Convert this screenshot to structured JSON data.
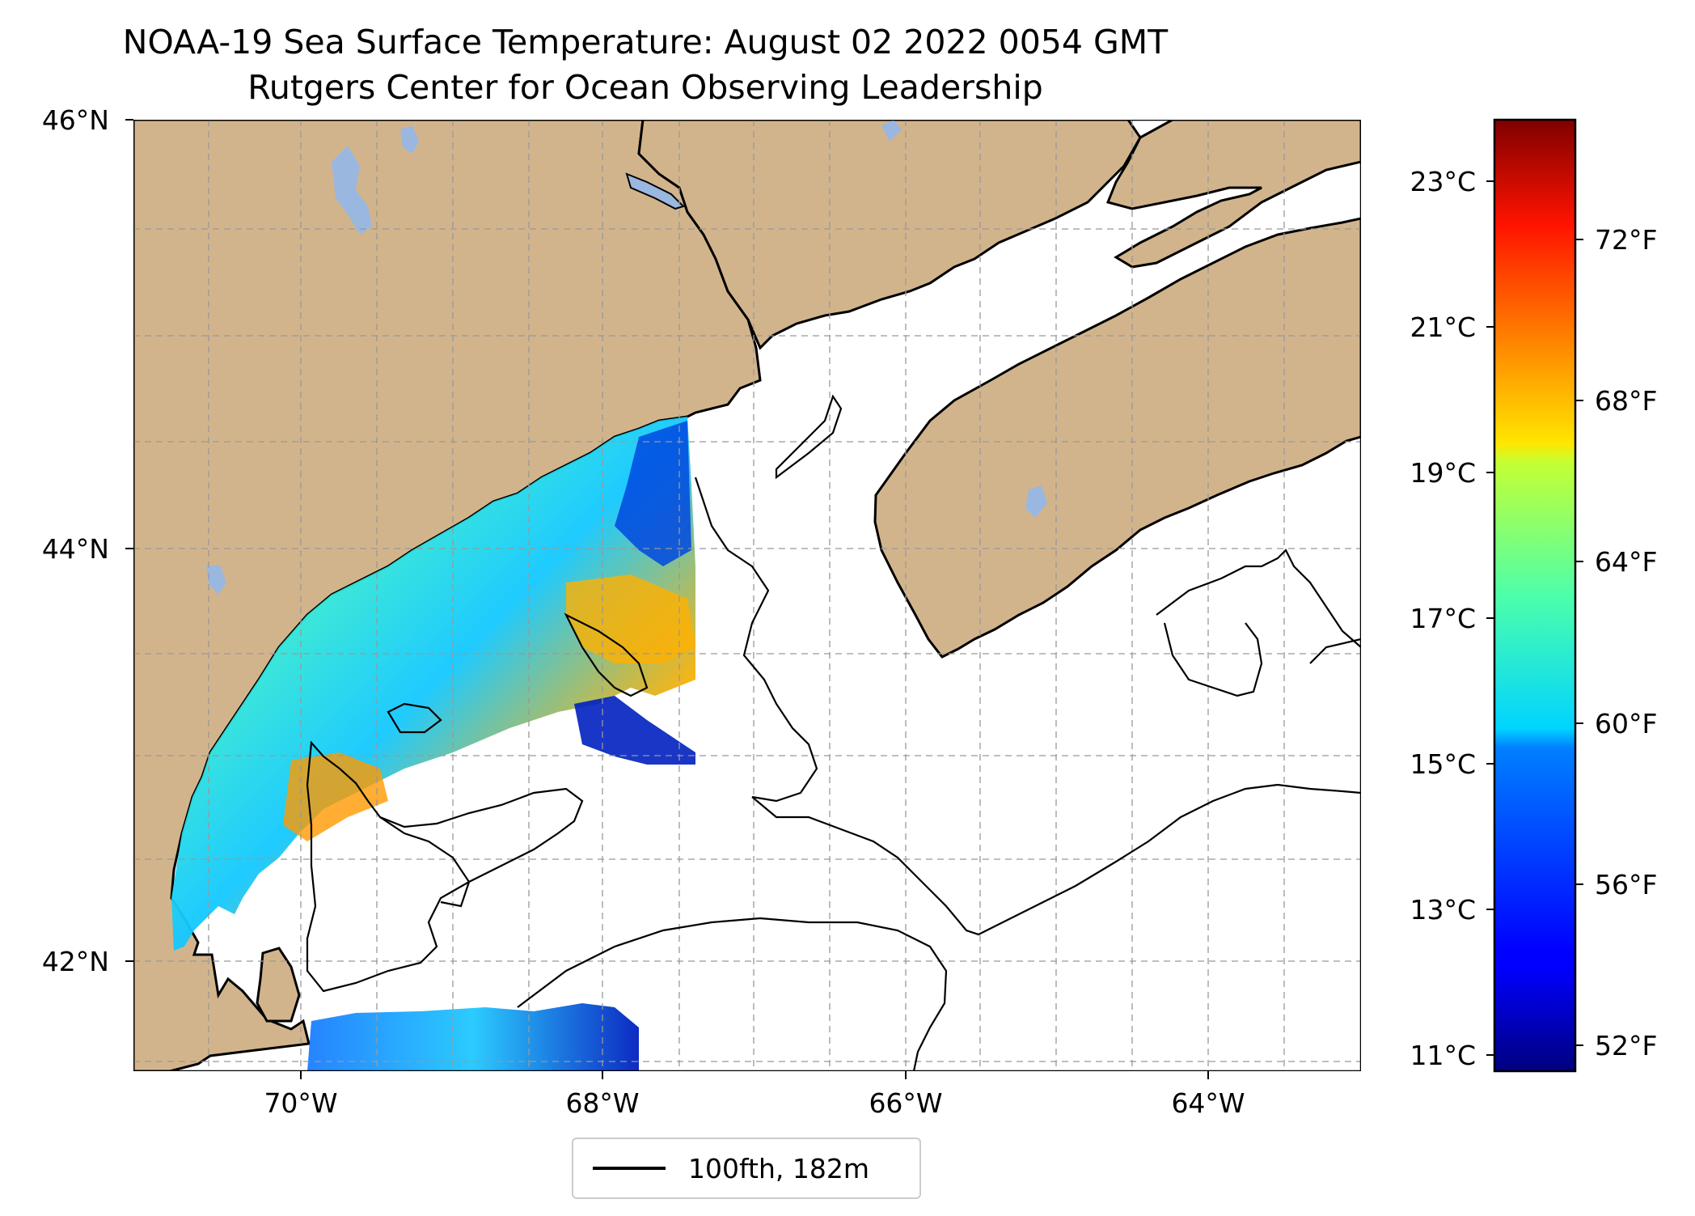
{
  "title": {
    "line1": "NOAA-19 Sea Surface Temperature: August 02 2022 0054 GMT",
    "line2": "Rutgers Center for Ocean Observing Leadership"
  },
  "map": {
    "lat_ticks": [
      "46°N",
      "44°N",
      "42°N"
    ],
    "lon_ticks": [
      "70°W",
      "68°W",
      "66°W",
      "64°W"
    ],
    "extent": {
      "lon_min": -71.1,
      "lon_max": -62.9,
      "lat_min": 41.5,
      "lat_max": 46.0
    },
    "land_color": "#d2b48c",
    "lake_color": "#9ab7e0",
    "grid": "dashed"
  },
  "colorbar": {
    "celsius_ticks": [
      "23°C",
      "21°C",
      "19°C",
      "17°C",
      "15°C",
      "13°C",
      "11°C"
    ],
    "fahrenheit_ticks": [
      "72°F",
      "68°F",
      "64°F",
      "60°F",
      "56°F",
      "52°F"
    ],
    "colormap": "jet",
    "min_c": 10.8,
    "max_c": 23.8
  },
  "legend": {
    "label": "100fth, 182m"
  }
}
